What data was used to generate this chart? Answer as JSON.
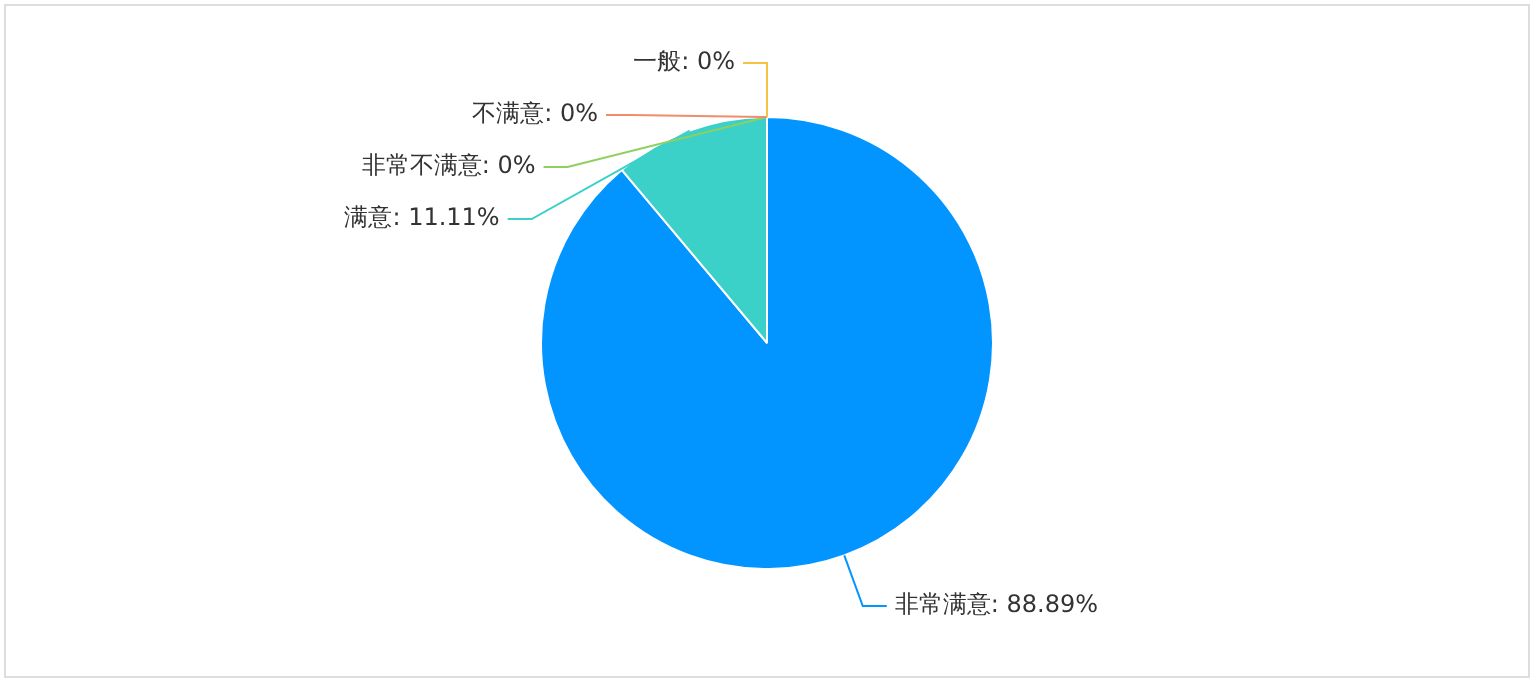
{
  "chart_data": {
    "type": "pie",
    "categories": [
      "非常满意",
      "满意",
      "非常不满意",
      "不满意",
      "一般"
    ],
    "values": [
      88.89,
      11.11,
      0,
      0,
      0
    ],
    "colors": [
      "#0395ff",
      "#3bd1c9",
      "#8fcf5f",
      "#f08c6c",
      "#f5c342"
    ],
    "value_labels": [
      ": 88.89%",
      ": 11.11%",
      ": 0%",
      ": 0%",
      ": 0%"
    ],
    "legend": false
  }
}
